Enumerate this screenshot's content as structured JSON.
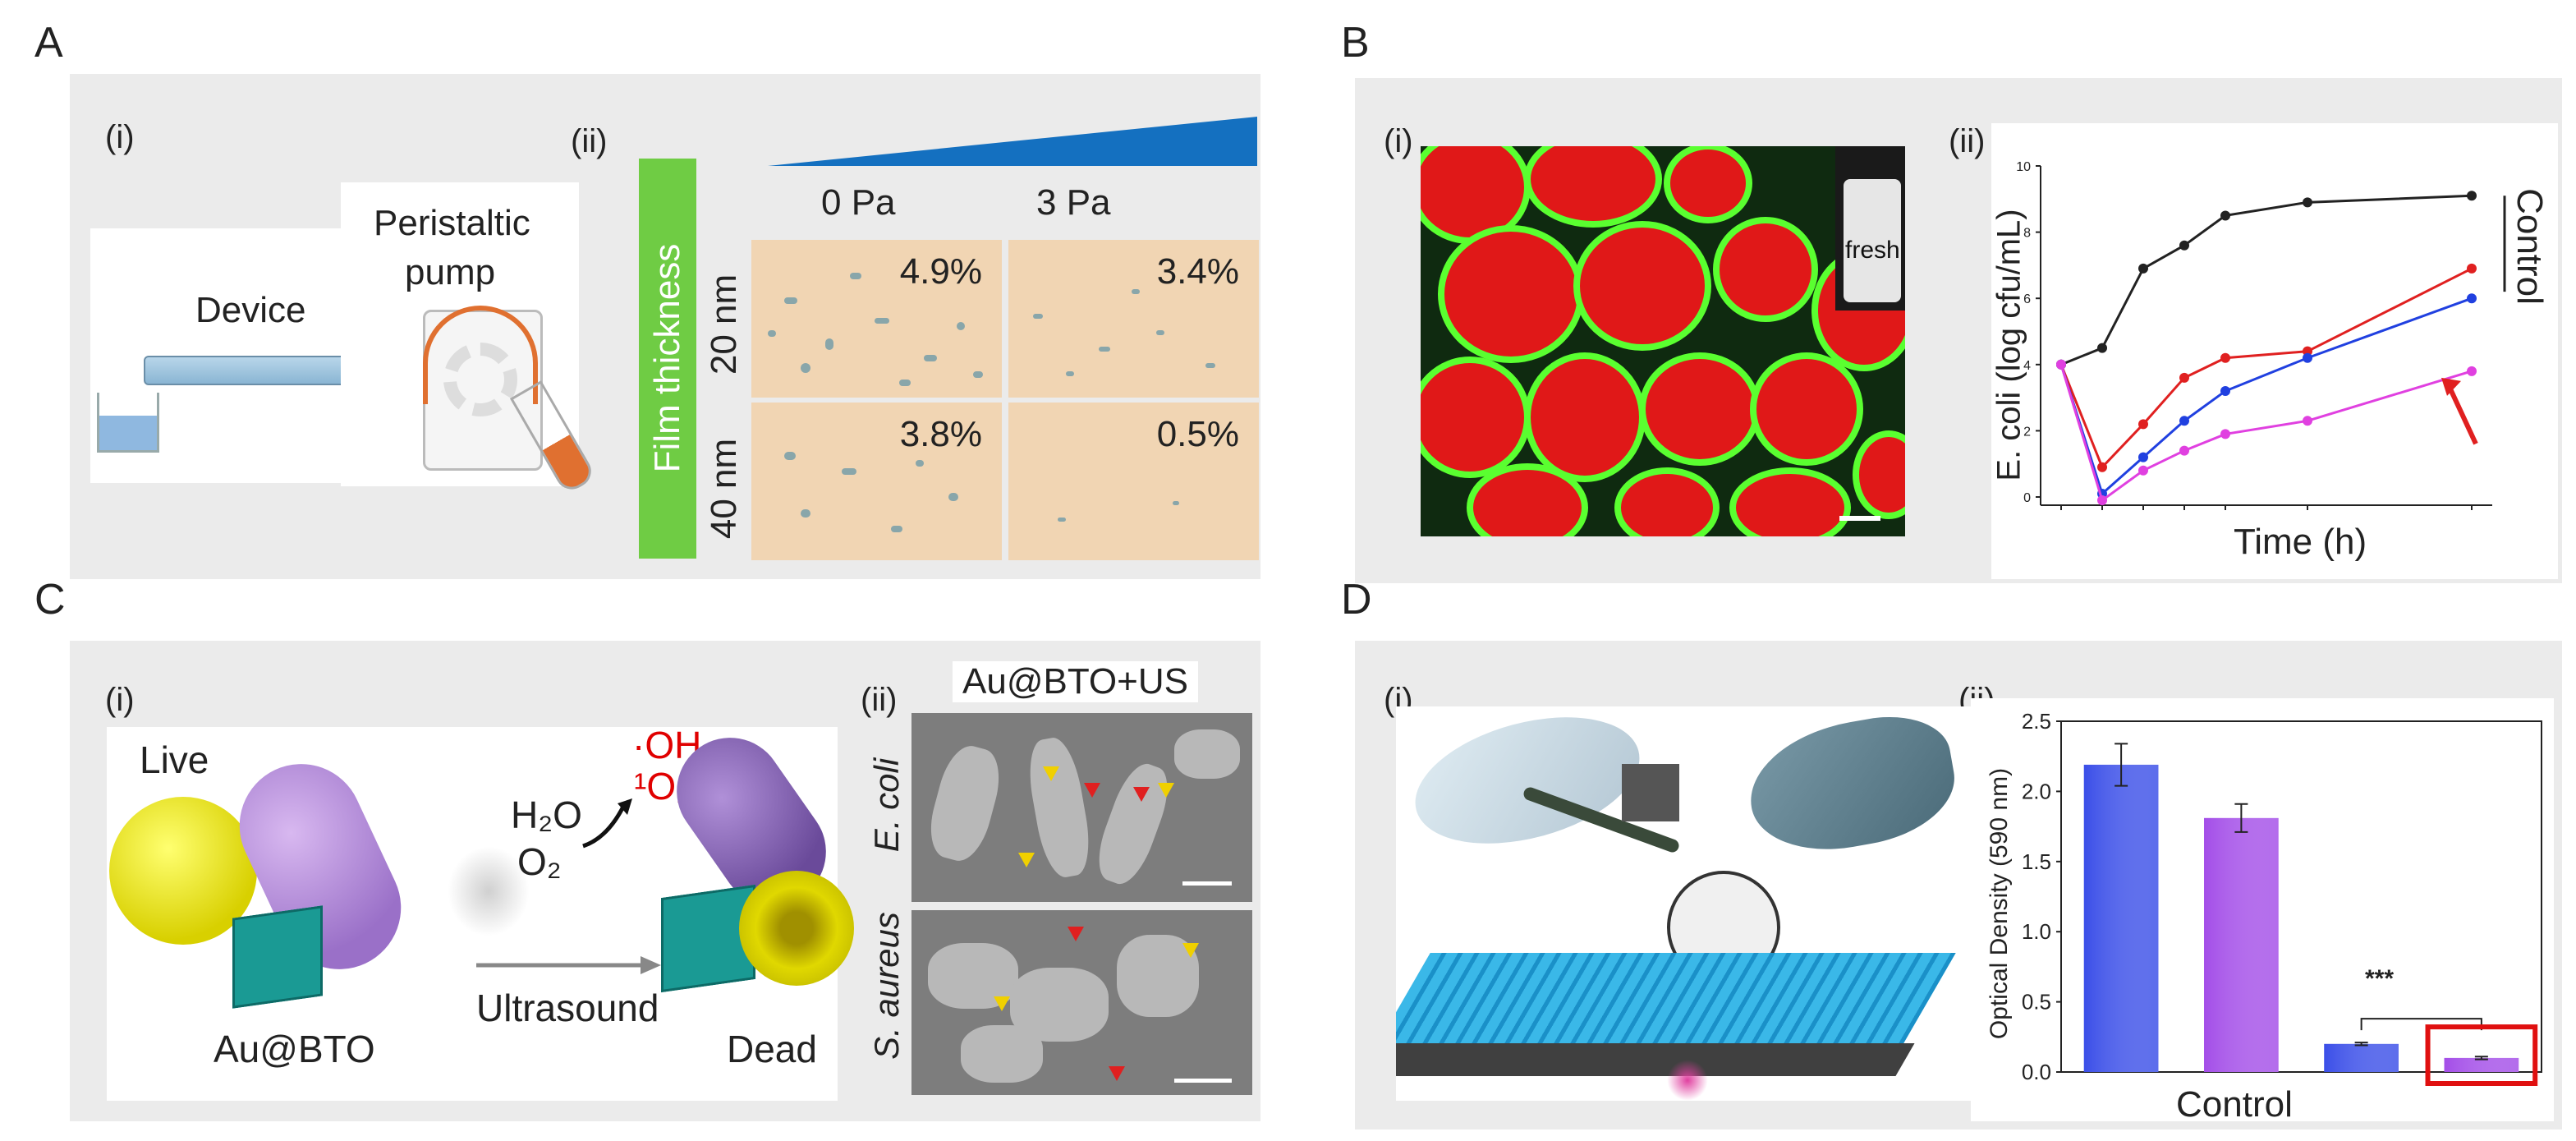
{
  "panels": {
    "A": {
      "letter": "A",
      "sub_i": "(i)",
      "sub_ii": "(ii)",
      "device_label": "Device",
      "pump_label_1": "Peristaltic",
      "pump_label_2": "pump",
      "film_thickness": "Film thickness",
      "pressure_cols": [
        "0 Pa",
        "3 Pa"
      ],
      "thickness_rows": [
        "20 nm",
        "40 nm"
      ],
      "coverage": [
        [
          "4.9%",
          "3.4%"
        ],
        [
          "3.8%",
          "0.5%"
        ]
      ]
    },
    "B": {
      "letter": "B",
      "sub_i": "(i)",
      "sub_ii": "(ii)",
      "vial_label": "fresh"
    },
    "C": {
      "letter": "C",
      "sub_i": "(i)",
      "sub_ii": "(ii)",
      "live": "Live",
      "dead": "Dead",
      "particle": "Au@BTO",
      "ultrasound": "Ultrasound",
      "h2o": "H₂O",
      "o2": "O₂",
      "oh": "·OH",
      "singlet_o2": "¹O₂",
      "sem_title": "Au@BTO+US",
      "species": [
        "E. coli",
        "S. aureus"
      ]
    },
    "D": {
      "letter": "D",
      "sub_i": "(i)",
      "sub_ii": "(ii)"
    }
  },
  "chart_data": [
    {
      "type": "line",
      "xlabel": "Time (h)",
      "ylabel": "E. coli (log cfu/mL)",
      "ylim": [
        0,
        10
      ],
      "yticks": [
        "0",
        "2",
        "4",
        "6",
        "8",
        "10"
      ],
      "x": [
        0,
        1,
        2,
        3,
        4,
        6,
        10
      ],
      "annotation": "Control",
      "series": [
        {
          "color": "#222222",
          "values": [
            4.0,
            4.5,
            6.9,
            7.6,
            8.5,
            8.9,
            9.1
          ]
        },
        {
          "color": "#e02020",
          "values": [
            4.0,
            0.9,
            2.2,
            3.6,
            4.2,
            4.4,
            6.9
          ]
        },
        {
          "color": "#2040e0",
          "values": [
            4.0,
            0.1,
            1.2,
            2.3,
            3.2,
            4.2,
            6.0
          ]
        },
        {
          "color": "#e040e0",
          "values": [
            4.0,
            -0.1,
            0.8,
            1.4,
            1.9,
            2.3,
            3.8
          ]
        }
      ]
    },
    {
      "type": "bar",
      "ylabel": "Optical Density (590 nm)",
      "xlabel": "Control",
      "ylim": [
        0,
        2.5
      ],
      "yticks": [
        "0.0",
        "0.5",
        "1.0",
        "1.5",
        "2.0",
        "2.5"
      ],
      "values": [
        2.19,
        1.81,
        0.2,
        0.1
      ],
      "errors": [
        0.15,
        0.1,
        0.01,
        0.01
      ],
      "colors": [
        "#3a4ee8",
        "#a34de8",
        "#3a4ee8",
        "#a34de8"
      ],
      "significance": "***"
    }
  ]
}
